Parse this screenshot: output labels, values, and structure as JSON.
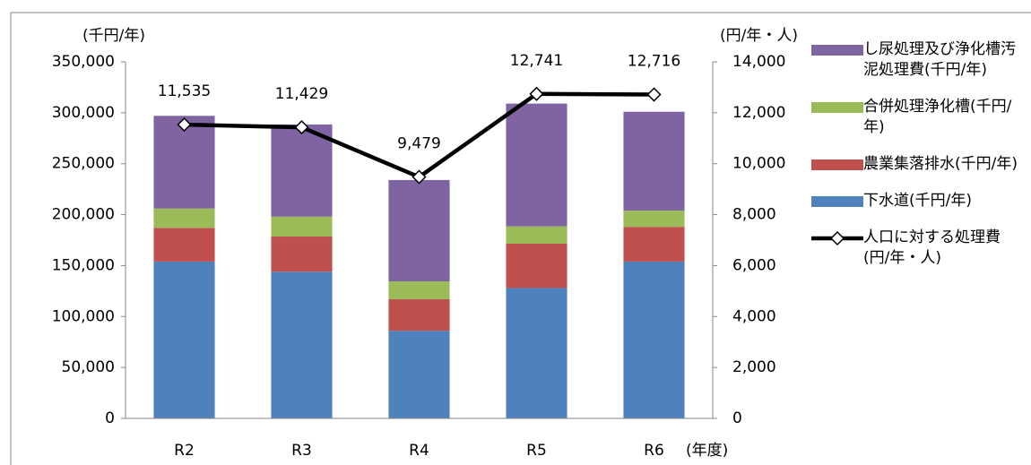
{
  "chart_data": {
    "type": "bar",
    "stacked": true,
    "y_axis_label": "(千円/年)",
    "y2_axis_label": "(円/年・人)",
    "x_axis_label": "(年度)",
    "categories": [
      "R2",
      "R3",
      "R4",
      "R5",
      "R6"
    ],
    "series": [
      {
        "name": "下水道(千円/年)",
        "color": "#4f81bd",
        "values": [
          154000,
          144000,
          86000,
          128000,
          154000
        ]
      },
      {
        "name": "農業集落排水(千円/年)",
        "color": "#c0504d",
        "values": [
          33000,
          34500,
          31000,
          43500,
          34000
        ]
      },
      {
        "name": "合併処理浄化槽(千円/年)",
        "color": "#9bbb59",
        "values": [
          19000,
          19500,
          17500,
          17000,
          16000
        ]
      },
      {
        "name": "し尿処理及び浄化槽汚泥処理費(千円/年)",
        "color": "#8064a2",
        "values": [
          91000,
          90500,
          99500,
          120500,
          97000
        ]
      },
      {
        "name": "人口に対する処理費 (円/年・人)",
        "color": "#000000",
        "type": "line",
        "axis": "y2",
        "values": [
          11535,
          11429,
          9479,
          12741,
          12716
        ],
        "value_labels": [
          "11,535",
          "11,429",
          "9,479",
          "12,741",
          "12,716"
        ]
      }
    ],
    "ylim": [
      0,
      350000
    ],
    "yticks": [
      0,
      {
        "value": 50000,
        "label": "50,000"
      },
      {
        "value": 100000,
        "label": "100,000"
      },
      {
        "value": 150000,
        "label": "150,000"
      },
      {
        "value": 200000,
        "label": "200,000"
      },
      {
        "value": 250000,
        "label": "250,000"
      },
      {
        "value": 300000,
        "label": "300,000"
      },
      {
        "value": 350000,
        "label": "350,000"
      }
    ],
    "y2lim": [
      0,
      14000
    ],
    "y2ticks": [
      0,
      {
        "value": 2000,
        "label": "2,000"
      },
      {
        "value": 4000,
        "label": "4,000"
      },
      {
        "value": 6000,
        "label": "6,000"
      },
      {
        "value": 8000,
        "label": "8,000"
      },
      {
        "value": 10000,
        "label": "10,000"
      },
      {
        "value": 12000,
        "label": "12,000"
      },
      {
        "value": 14000,
        "label": "14,000"
      }
    ],
    "grid": false,
    "legend": "right"
  }
}
